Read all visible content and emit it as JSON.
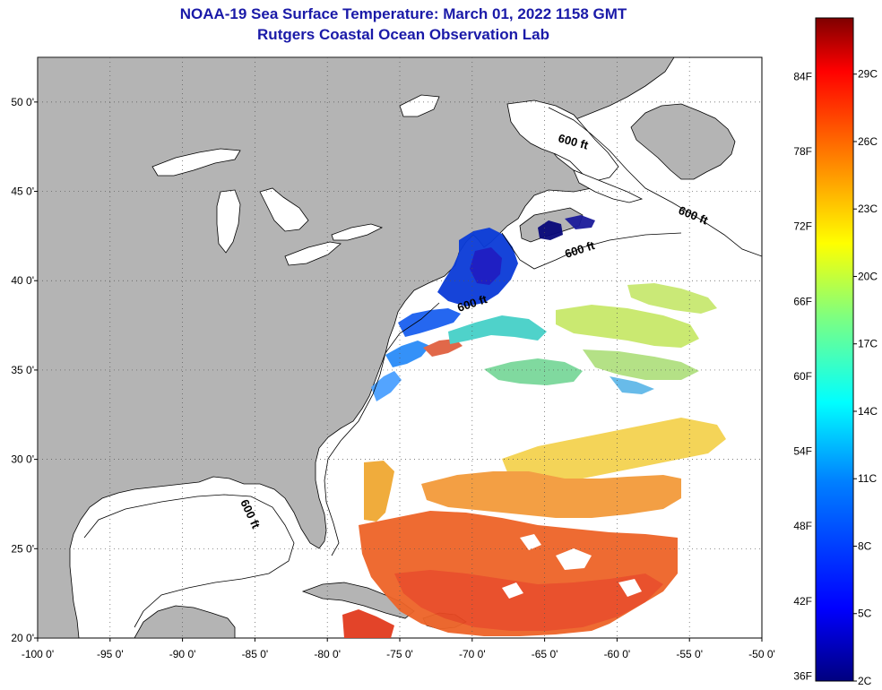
{
  "header": {
    "title": "NOAA-19 Sea Surface Temperature:  March 01, 2022 1158 GMT",
    "subtitle": "Rutgers Coastal Ocean Observation Lab"
  },
  "map": {
    "lon_range": [
      -100,
      -50
    ],
    "lat_range": [
      20,
      52.5
    ],
    "lon_ticks": [
      {
        "value": -100,
        "label": "-100 0'"
      },
      {
        "value": -95,
        "label": "-95 0'"
      },
      {
        "value": -90,
        "label": "-90 0'"
      },
      {
        "value": -85,
        "label": "-85 0'"
      },
      {
        "value": -80,
        "label": "-80 0'"
      },
      {
        "value": -75,
        "label": "-75 0'"
      },
      {
        "value": -70,
        "label": "-70 0'"
      },
      {
        "value": -65,
        "label": "-65 0'"
      },
      {
        "value": -60,
        "label": "-60 0'"
      },
      {
        "value": -55,
        "label": "-55 0'"
      },
      {
        "value": -50,
        "label": "-50 0'"
      }
    ],
    "lat_ticks": [
      {
        "value": 50,
        "label": "50 0'"
      },
      {
        "value": 45,
        "label": "45 0'"
      },
      {
        "value": 40,
        "label": "40 0'"
      },
      {
        "value": 35,
        "label": "35 0'"
      },
      {
        "value": 30,
        "label": "30 0'"
      },
      {
        "value": 25,
        "label": "25 0'"
      },
      {
        "value": 20,
        "label": "20 0'"
      }
    ],
    "isobath_label": "600 ft",
    "colors": {
      "land": "#b4b4b4",
      "ocean_missing": "#ffffff",
      "gridline": "#555555"
    }
  },
  "colorbar": {
    "fahrenheit_labels": [
      "84F",
      "78F",
      "72F",
      "66F",
      "60F",
      "54F",
      "48F",
      "42F",
      "36F"
    ],
    "celsius_labels": [
      "29C",
      "26C",
      "23C",
      "20C",
      "17C",
      "14C",
      "11C",
      "8C",
      "5C",
      "2C"
    ],
    "gradient": [
      "#00007f",
      "#0000ff",
      "#007fff",
      "#00ffff",
      "#7fff7f",
      "#ffff00",
      "#ff7f00",
      "#ff0000",
      "#7f0000"
    ]
  }
}
